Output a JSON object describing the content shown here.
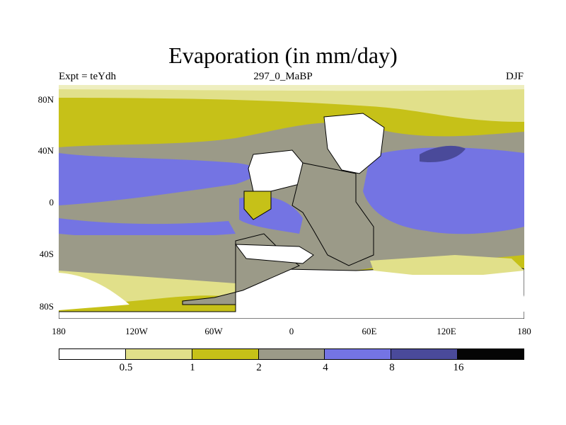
{
  "title": "Evaporation (in mm/day)",
  "subtitle": {
    "left": "Expt = teYdh",
    "center": "297_0_MaBP",
    "right": "DJF"
  },
  "map": {
    "lat_ticks": [
      "80N",
      "40N",
      "0",
      "40S",
      "80S"
    ],
    "lon_ticks": [
      "180",
      "120W",
      "60W",
      "0",
      "60E",
      "120E",
      "180"
    ]
  },
  "colorbar": {
    "colors": [
      "#ffffff",
      "#e1e08a",
      "#c6c118",
      "#9b9a88",
      "#7474e3",
      "#4a4a9a",
      "#050505"
    ],
    "labels": [
      "0.5",
      "1",
      "2",
      "4",
      "8",
      "16"
    ]
  }
}
